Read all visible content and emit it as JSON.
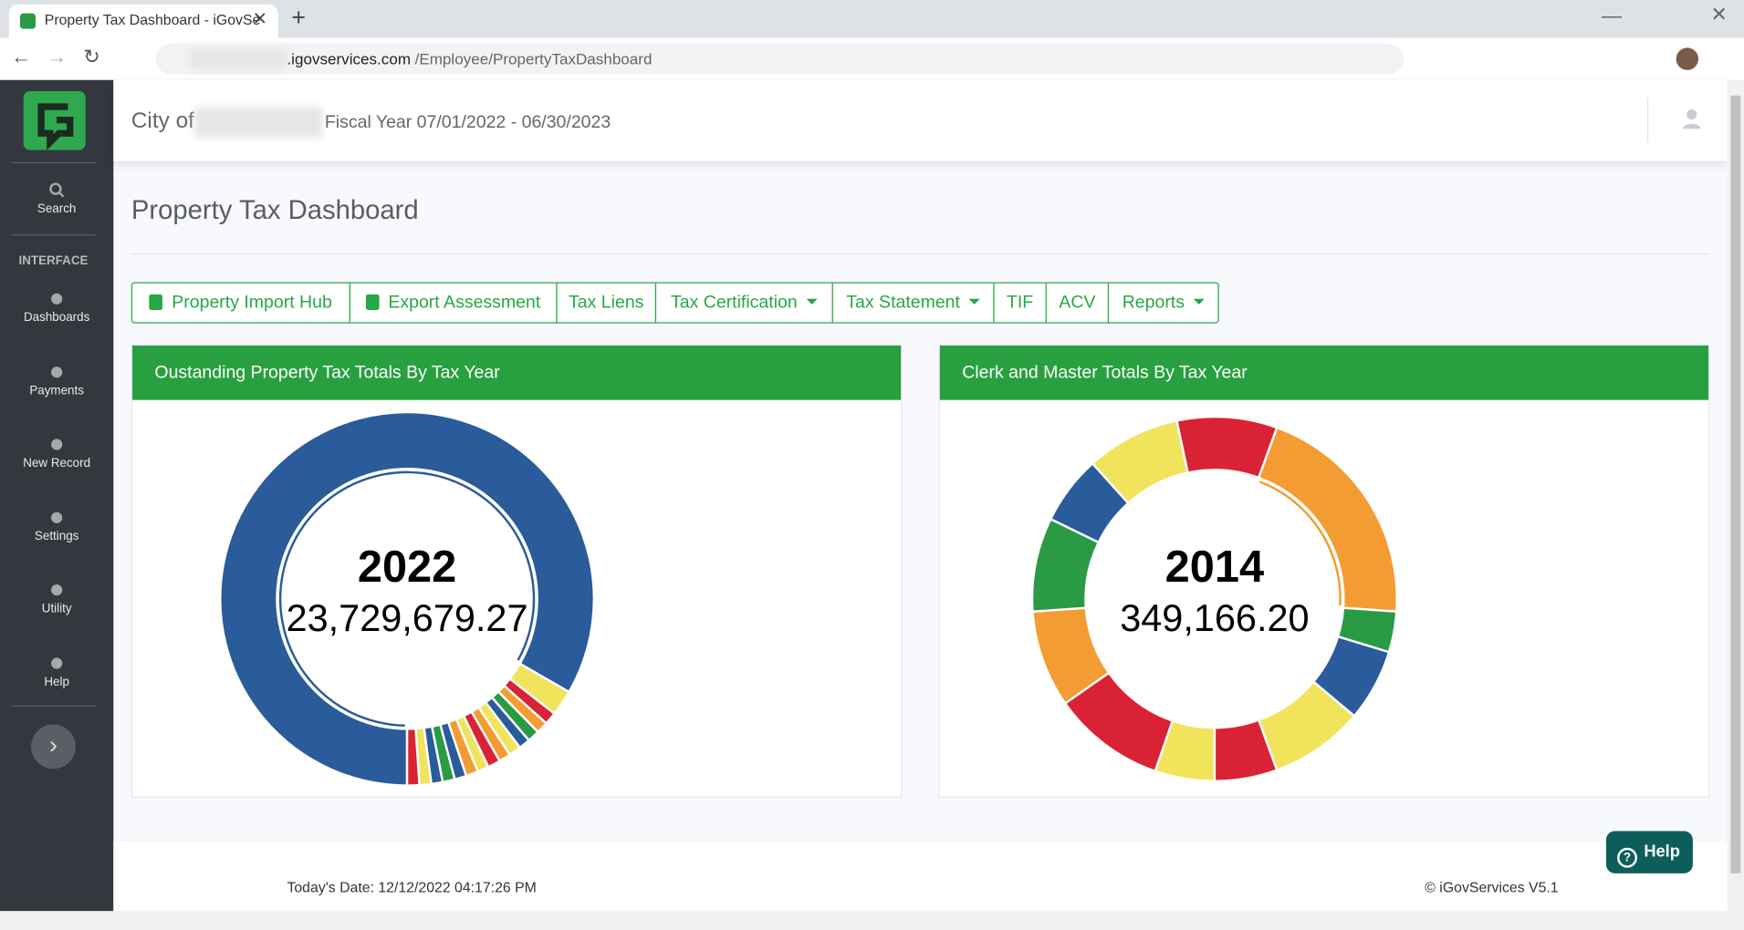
{
  "browser": {
    "tab_title": "Property Tax Dashboard - iGovSe",
    "url_domain": ".igovservices.com",
    "url_path": "/Employee/PropertyTaxDashboard"
  },
  "sidebar": {
    "search": "Search",
    "section": "INTERFACE",
    "items": [
      "Dashboards",
      "Payments",
      "New Record",
      "Settings",
      "Utility",
      "Help"
    ]
  },
  "header": {
    "city_label": "City of",
    "fiscal_year": "Fiscal Year 07/01/2022 - 06/30/2023"
  },
  "page_title": "Property Tax Dashboard",
  "toolbar": [
    "Property Import Hub",
    "Export Assessment",
    "Tax Liens",
    "Tax Certification",
    "Tax Statement",
    "TIF",
    "ACV",
    "Reports"
  ],
  "chart_data": [
    {
      "type": "doughnut",
      "title": "Oustanding Property Tax Totals By Tax Year",
      "center_title": "2022",
      "center_value": "23,729,679.27",
      "values": [
        23729679.27,
        632000,
        310000,
        290000,
        300000,
        280000,
        300000,
        290000,
        310000,
        280000,
        300000,
        290000,
        300000,
        280000,
        290000,
        300000
      ],
      "colors": [
        "#2a5b9a",
        "#f2e35d",
        "#d92334",
        "#f39c33",
        "#2a9a44",
        "#2a5b9a",
        "#f2e35d",
        "#f39c33",
        "#d92334",
        "#f2e35d",
        "#f39c33",
        "#2a5b9a",
        "#2a9a44",
        "#2a5b9a",
        "#f2e35d",
        "#d92334"
      ]
    },
    {
      "type": "doughnut",
      "title": "Clerk and Master Totals By Tax Year",
      "center_title": "2014",
      "center_value": "349,166.20",
      "values": [
        150980,
        349166.2,
        61340,
        108520,
        141550,
        94360,
        89640,
        169850,
        146260,
        141550,
        103800,
        141550
      ],
      "colors": [
        "#d92334",
        "#f39c33",
        "#2a9a44",
        "#2a5b9a",
        "#f2e35d",
        "#d92334",
        "#f2e35d",
        "#d92334",
        "#f39c33",
        "#2a9a44",
        "#2a5b9a",
        "#f2e35d"
      ]
    }
  ],
  "footer": {
    "date": "Today's Date: 12/12/2022 04:17:26 PM",
    "copyright": "© iGovServices V5.1",
    "help": "Help"
  }
}
